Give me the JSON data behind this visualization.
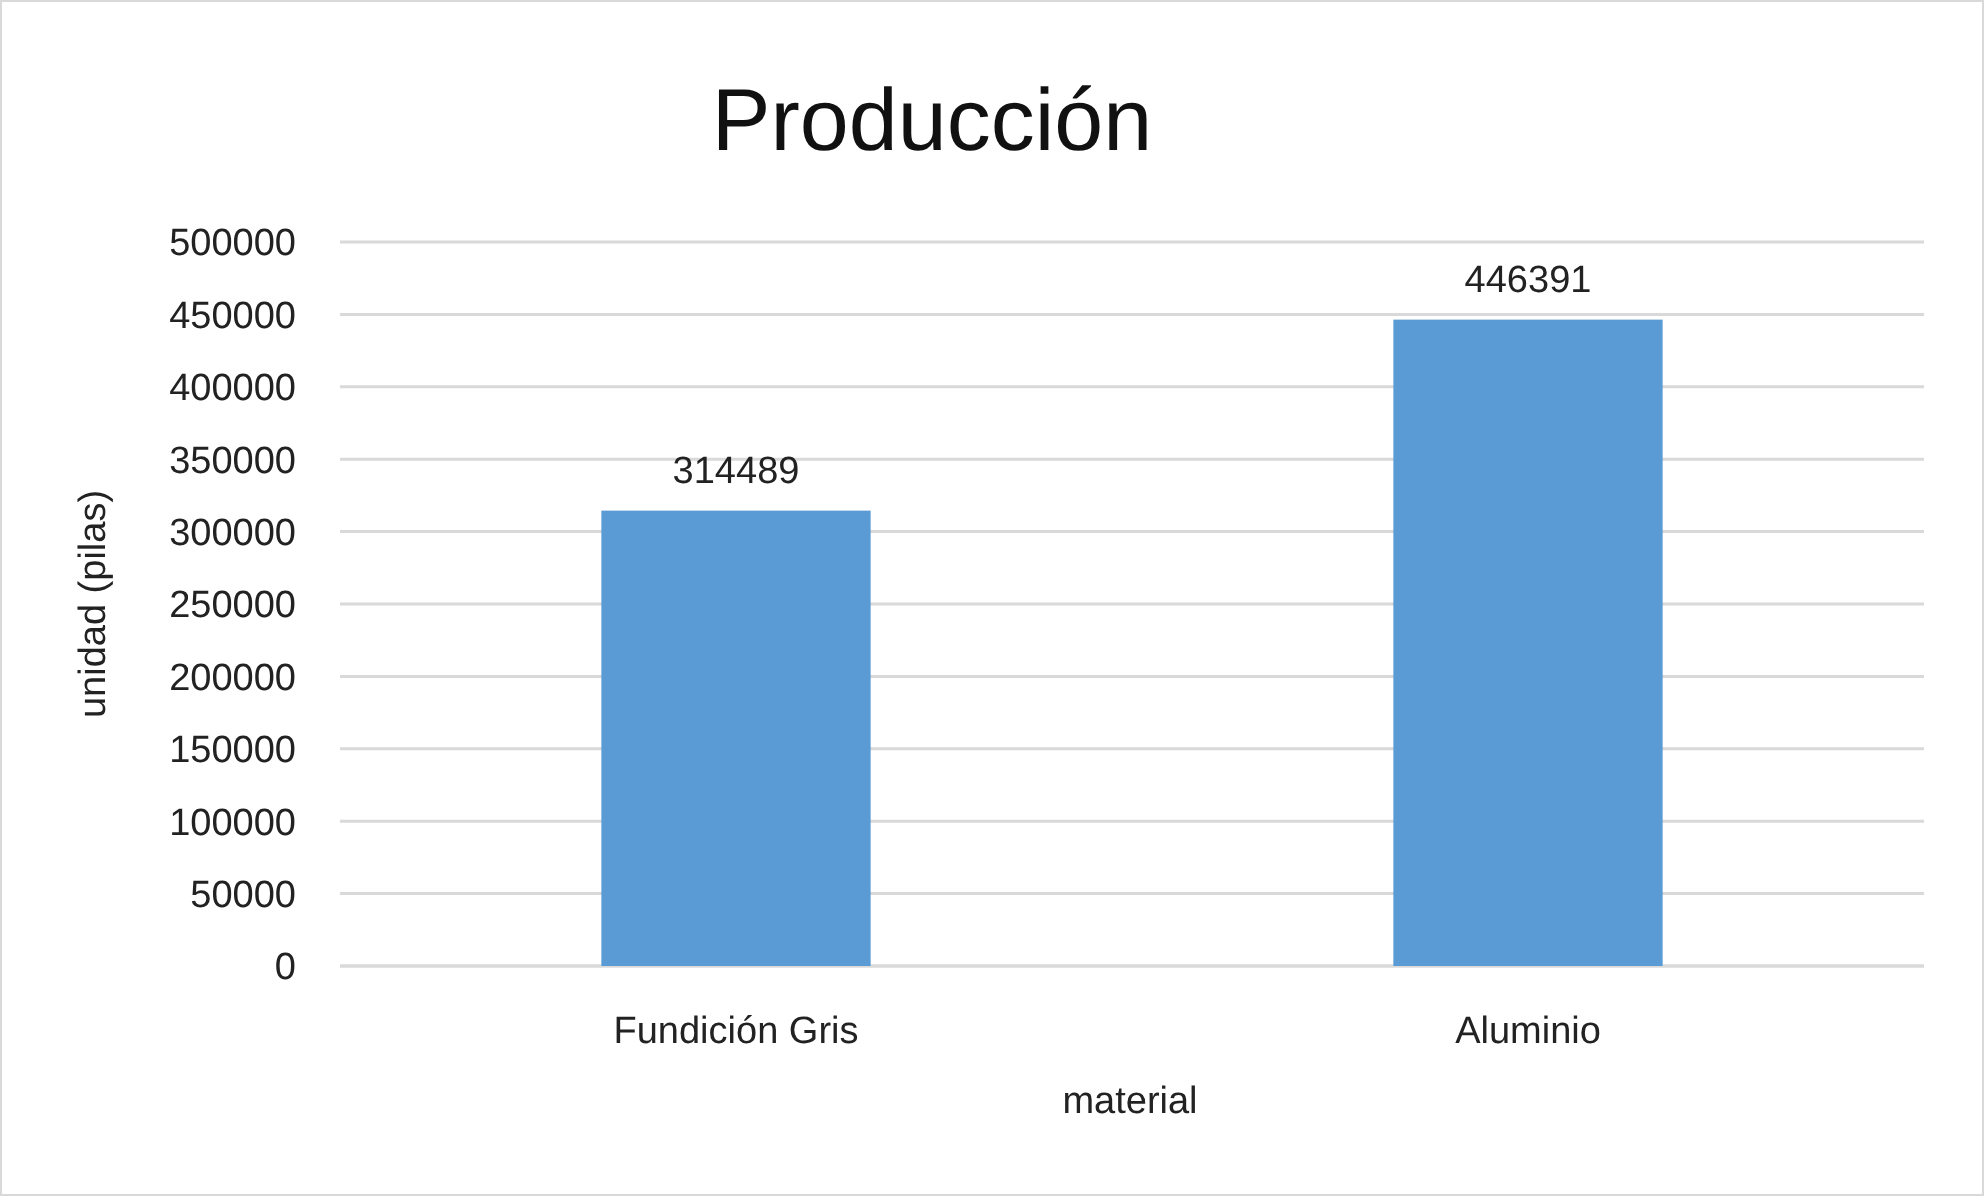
{
  "chart_data": {
    "type": "bar",
    "title": "Producción",
    "xlabel": "material",
    "ylabel": "unidad (pilas)",
    "categories": [
      "Fundición Gris",
      "Aluminio"
    ],
    "values": [
      314489,
      446391
    ],
    "color": "#5b9bd5",
    "ylim": [
      0,
      500000
    ],
    "yticks": [
      0,
      50000,
      100000,
      150000,
      200000,
      250000,
      300000,
      350000,
      400000,
      450000,
      500000
    ],
    "grid": "y",
    "data_labels": true
  }
}
